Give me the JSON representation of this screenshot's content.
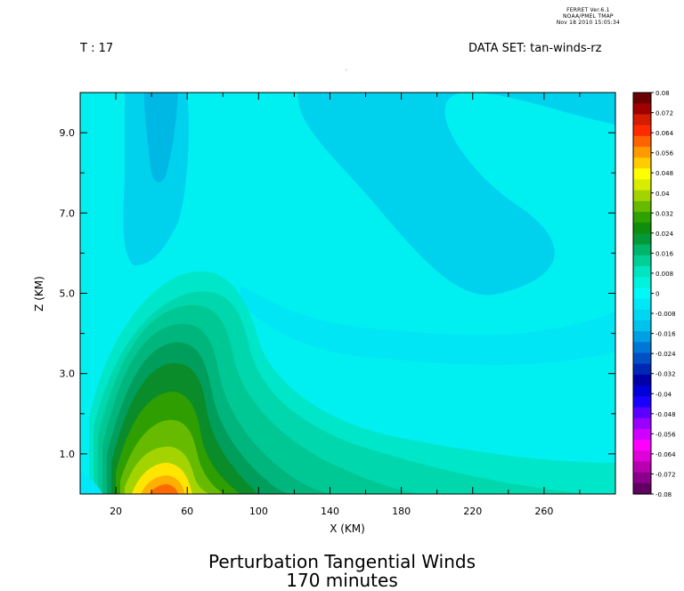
{
  "header": {
    "program_line_1": "FERRET Ver.6.1",
    "program_line_2": "NOAA/PMEL TMAP",
    "timestamp": "Nov 18 2010 15:05:34",
    "time_label": "T : 17",
    "dataset_label": "DATA SET: tan-winds-rz",
    "dot": "."
  },
  "chart_data": {
    "type": "heatmap",
    "title": "Perturbation Tangential Winds",
    "subtitle": "170 minutes",
    "xlabel": "X (KM)",
    "ylabel": "Z (KM)",
    "xlim": [
      0,
      300
    ],
    "ylim": [
      0,
      10
    ],
    "x_ticks": [
      "20",
      "60",
      "100",
      "140",
      "180",
      "220",
      "260"
    ],
    "x_tick_values": [
      20,
      60,
      100,
      140,
      180,
      220,
      260
    ],
    "y_ticks": [
      "1.0",
      "3.0",
      "5.0",
      "7.0",
      "9.0"
    ],
    "y_tick_values": [
      1,
      3,
      5,
      7,
      9
    ],
    "colorbar": {
      "range": [
        -0.08,
        0.08
      ],
      "labels": [
        "0.08",
        "0.072",
        "0.064",
        "0.056",
        "0.048",
        "0.04",
        "0.032",
        "0.024",
        "0.016",
        "0.008",
        "0",
        "-0.008",
        "-0.016",
        "-0.024",
        "-0.032",
        "-0.04",
        "-0.048",
        "-0.056",
        "-0.064",
        "-0.072",
        "-0.08"
      ],
      "colors": [
        "#6b0000",
        "#a00000",
        "#d41c00",
        "#ff2a00",
        "#ff6400",
        "#ff9a00",
        "#ffcc00",
        "#ffff00",
        "#d8ec00",
        "#a4d400",
        "#66bb00",
        "#2ea200",
        "#0f8d0c",
        "#049a3a",
        "#00b56a",
        "#00cf96",
        "#00e5bf",
        "#00f2dc",
        "#00f8f8",
        "#00e8f8",
        "#00d6f2",
        "#00c2ea",
        "#009ee2",
        "#0076d6",
        "#0050c4",
        "#0028b4",
        "#0000a8",
        "#0000d8",
        "#1a00ff",
        "#5a00ff",
        "#9a00ff",
        "#d000ff",
        "#ff00ff",
        "#e000d8",
        "#b800b0",
        "#8a008a",
        "#620062"
      ]
    }
  }
}
